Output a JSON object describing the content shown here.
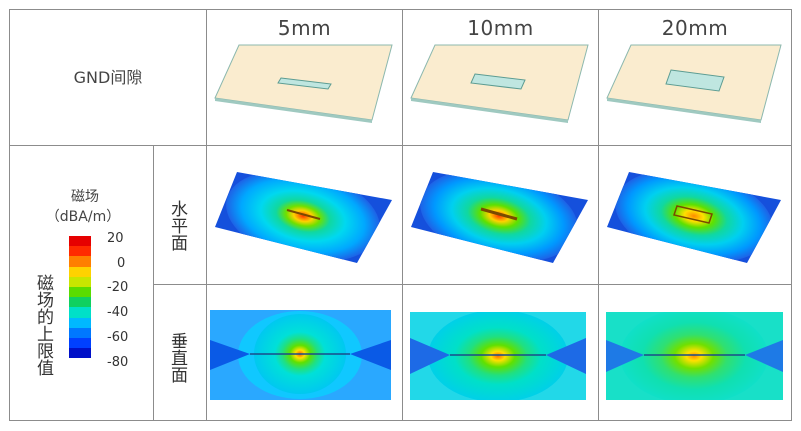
{
  "header": {
    "row_label": "GND间隙",
    "columns": [
      "5mm",
      "10mm",
      "20mm"
    ]
  },
  "side": {
    "main_label": "磁场的上限值",
    "legend_title": "磁场",
    "legend_unit": "（dBA/m）",
    "legend_ticks": [
      "20",
      "0",
      "-20",
      "-40",
      "-60",
      "-80"
    ],
    "legend_colors": [
      "#e60000",
      "#ff2a00",
      "#ff7f00",
      "#ffd200",
      "#c8e600",
      "#5adc00",
      "#10d060",
      "#00e0c8",
      "#00b8ff",
      "#0078ff",
      "#0040ff",
      "#0010c8"
    ]
  },
  "rows": [
    {
      "label": "水平面"
    },
    {
      "label": "垂直面"
    }
  ],
  "colors": {
    "board": "#faeccf",
    "board_edge": "#7fb3a8",
    "slot": "#bfe6e0"
  },
  "gaps": [
    {
      "slot_ratio": 0.25
    },
    {
      "slot_ratio": 0.5
    },
    {
      "slot_ratio": 1.0
    }
  ]
}
